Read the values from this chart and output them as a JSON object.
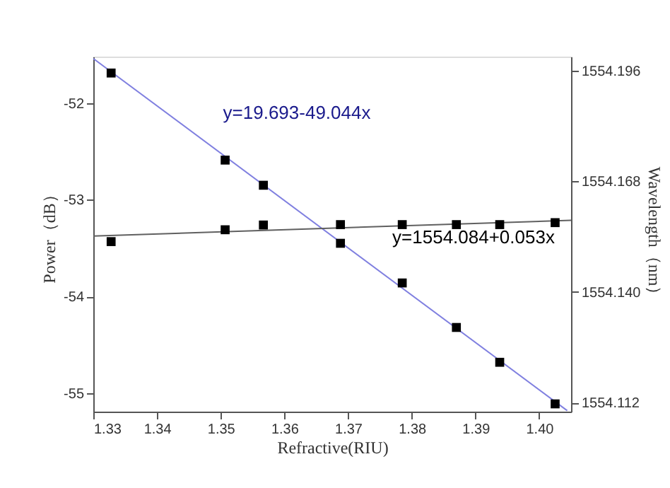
{
  "chart_data": {
    "type": "scatter",
    "xlabel": "Refractive(RIU)",
    "ylabel": "Power（dB）",
    "y2label": "Wavelength（nm）",
    "xlim": [
      1.33,
      1.405
    ],
    "xticks": [
      1.33,
      1.34,
      1.35,
      1.36,
      1.37,
      1.38,
      1.39,
      {
        "value": 1.4,
        "label": "1.40"
      }
    ],
    "ylim": [
      -55.19,
      -51.52
    ],
    "yticks": [
      -55,
      -54,
      -53,
      -52
    ],
    "y2lim": [
      1554.1097,
      1554.1995
    ],
    "y2ticks": [
      {
        "value": 1554.112,
        "label": "1554.112"
      },
      {
        "value": 1554.14,
        "label": "1554.140"
      },
      {
        "value": 1554.168,
        "label": "1554.168"
      },
      {
        "value": 1554.196,
        "label": "1554.196"
      }
    ],
    "grid": false,
    "series": [
      {
        "marker": "square",
        "color": "#000000",
        "axis": "y",
        "x": [
          1.3328,
          1.3507,
          1.3567,
          1.3688,
          1.3785,
          1.387,
          1.3938,
          1.4025
        ],
        "values": [
          -51.69,
          -52.59,
          -52.85,
          -53.45,
          -53.86,
          -54.32,
          -54.68,
          -55.11
        ]
      },
      {
        "type": "line",
        "marker": "none",
        "line_style": "solid",
        "color": "#8080e0",
        "axis": "y",
        "x": [
          1.33,
          1.4044
        ],
        "values": [
          -51.54,
          -55.18
        ]
      },
      {
        "marker": "square",
        "color": "#000000",
        "axis": "y2",
        "x": [
          1.3328,
          1.3507,
          1.3567,
          1.3688,
          1.3785,
          1.387,
          1.3938,
          1.4025
        ],
        "values": [
          1554.1527,
          1554.1557,
          1554.1569,
          1554.157,
          1554.157,
          1554.157,
          1554.157,
          1554.1575
        ]
      },
      {
        "type": "line",
        "marker": "none",
        "line_style": "solid",
        "color": "#606060",
        "axis": "y2",
        "x": [
          1.33,
          1.405
        ],
        "values": [
          1554.1541,
          1554.1581
        ]
      }
    ],
    "annotations": [
      "y=19.693-49.044x",
      "y=1554.084+0.053x"
    ]
  }
}
